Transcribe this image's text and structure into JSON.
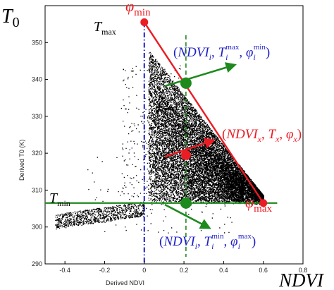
{
  "chart_data": {
    "type": "scatter",
    "xlabel": "Derived NDVI",
    "ylabel": "Derived T0 (K)",
    "xlim": [
      -0.5,
      0.8
    ],
    "ylim": [
      290,
      360
    ],
    "x_ticks": [
      -0.4,
      -0.2,
      0,
      0.2,
      0.4,
      0.6,
      0.8
    ],
    "x_tick_labels": [
      "-0.4",
      "-0.2",
      "0",
      "0.2",
      "0.4",
      "0.6",
      "0.8"
    ],
    "y_ticks": [
      290,
      300,
      310,
      320,
      330,
      340,
      350
    ],
    "y_tick_labels": [
      "290",
      "300",
      "310",
      "320",
      "330",
      "340",
      "350"
    ],
    "outer_x_label": "NDVI",
    "outer_y_label": {
      "main": "T",
      "sub": "0"
    },
    "reference_lines": {
      "tmax_label": {
        "main": "T",
        "sub": "max"
      },
      "tmin_label": {
        "main": "T",
        "sub": "min"
      },
      "phi_min_label": {
        "main": "φ",
        "sub": "min"
      },
      "phi_max_label": {
        "main": "φ",
        "sub": "max"
      },
      "vertical_ndvi_zero": 0,
      "vertical_ndvi_i": 0.21,
      "horizontal_tmin": 306.5
    },
    "dry_edge": {
      "points": [
        [
          0,
          355.5
        ],
        [
          0.6,
          306.5
        ]
      ],
      "color": "#ea1c24"
    },
    "marked_points": [
      {
        "x": 0,
        "y": 355.5,
        "color": "#ea1c24"
      },
      {
        "x": 0.21,
        "y": 339,
        "color": "#1e8a1e"
      },
      {
        "x": 0.21,
        "y": 319.5,
        "color": "#ea1c24"
      },
      {
        "x": 0.21,
        "y": 306.5,
        "color": "#1e8a1e"
      },
      {
        "x": 0.6,
        "y": 306.5,
        "color": "#ea1c24"
      }
    ],
    "annotations": [
      {
        "text": "(NDVI_i, T_i^max, φ_i^min)",
        "color": "#1f1fc8",
        "parts": [
          "(",
          "NDVI",
          "i",
          ", ",
          "T",
          "i",
          "max",
          ", ",
          "φ",
          "i",
          "min",
          ")"
        ]
      },
      {
        "text": "(NDVI_x, T_x, φ_x)",
        "color": "#ea1c24",
        "parts": [
          "(",
          "NDVI",
          "x",
          ", ",
          "T",
          "x",
          ", ",
          "φ",
          "x",
          ")"
        ]
      },
      {
        "text": "(NDVI_i, T_i^min, φ_i^max)",
        "color": "#1f1fc8",
        "parts": [
          "(",
          "NDVI",
          "i",
          ", ",
          "T",
          "i",
          "min",
          ", ",
          "φ",
          "i",
          "max",
          ")"
        ]
      }
    ],
    "scatter_description": "dense triangular cloud of pixels between NDVI 0 and 0.6, T0 306-345 K, with a sparse tail toward negative NDVI near 300-305 K",
    "colors": {
      "dry_edge": "#ea1c24",
      "wet_edge": "#1e8a1e",
      "ndvi_zero_line": "#1f1fc8",
      "ndvi_i_line": "#1e8a1e",
      "points": "#000000"
    }
  }
}
